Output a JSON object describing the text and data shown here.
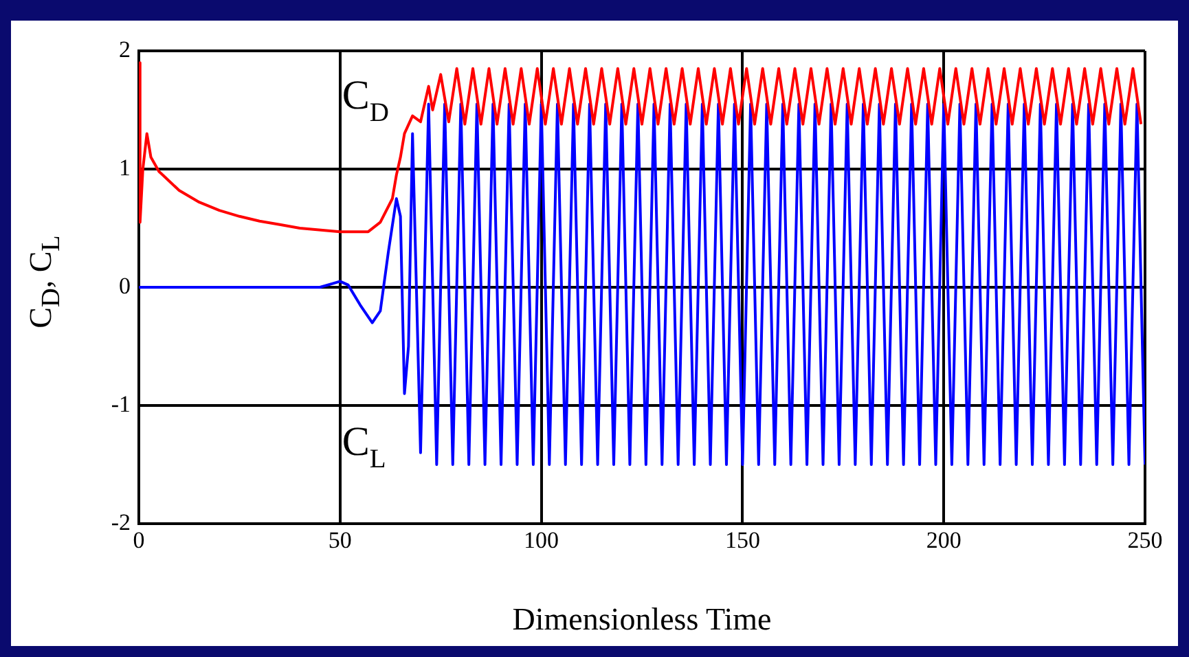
{
  "chart_data": {
    "type": "line",
    "xlabel": "Dimensionless Time",
    "ylabel": "C$_{D}$, C$_{L}$",
    "xlim": [
      0,
      250
    ],
    "xticks": [
      0,
      50,
      100,
      150,
      200,
      250
    ],
    "ylim": [
      -2,
      2
    ],
    "yticks": [
      -2,
      -1,
      0,
      1,
      2
    ],
    "grid": true,
    "legend": false,
    "marker": "none",
    "line_style": "solid",
    "series": [
      {
        "name": "C$_{D}$",
        "color": "#ff0000",
        "x": [
          0,
          0.3,
          1,
          2,
          3,
          5,
          10,
          15,
          20,
          25,
          30,
          35,
          40,
          50,
          57,
          60,
          63,
          64,
          65,
          66,
          68,
          70,
          72,
          73,
          75,
          77,
          79,
          81,
          83,
          85,
          87,
          89,
          91,
          93,
          95,
          97,
          99,
          101,
          103,
          105,
          107,
          109,
          111,
          113,
          115,
          117,
          119,
          121,
          123,
          125,
          127,
          129,
          131,
          133,
          135,
          137,
          139,
          141,
          143,
          145,
          147,
          149,
          151,
          153,
          155,
          157,
          159,
          161,
          163,
          165,
          167,
          169,
          171,
          173,
          175,
          177,
          179,
          181,
          183,
          185,
          187,
          189,
          191,
          193,
          195,
          197,
          199,
          201,
          203,
          205,
          207,
          209,
          211,
          213,
          215,
          217,
          219,
          221,
          223,
          225,
          227,
          229,
          231,
          233,
          235,
          237,
          239,
          241,
          243,
          245,
          247,
          249
        ],
        "values": [
          1.9,
          0.55,
          1.0,
          1.3,
          1.1,
          0.98,
          0.82,
          0.72,
          0.65,
          0.6,
          0.56,
          0.53,
          0.5,
          0.47,
          0.47,
          0.55,
          0.75,
          0.95,
          1.1,
          1.3,
          1.45,
          1.4,
          1.7,
          1.5,
          1.8,
          1.4,
          1.85,
          1.38,
          1.85,
          1.38,
          1.85,
          1.38,
          1.85,
          1.38,
          1.85,
          1.38,
          1.85,
          1.38,
          1.85,
          1.38,
          1.85,
          1.38,
          1.85,
          1.38,
          1.85,
          1.38,
          1.85,
          1.38,
          1.85,
          1.38,
          1.85,
          1.38,
          1.85,
          1.38,
          1.85,
          1.38,
          1.85,
          1.38,
          1.85,
          1.38,
          1.85,
          1.38,
          1.85,
          1.38,
          1.85,
          1.38,
          1.85,
          1.38,
          1.85,
          1.38,
          1.85,
          1.38,
          1.85,
          1.38,
          1.85,
          1.38,
          1.85,
          1.38,
          1.85,
          1.38,
          1.85,
          1.38,
          1.85,
          1.38,
          1.85,
          1.38,
          1.85,
          1.38,
          1.85,
          1.38,
          1.85,
          1.38,
          1.85,
          1.38,
          1.85,
          1.38,
          1.85,
          1.38,
          1.85,
          1.38,
          1.85,
          1.38,
          1.85,
          1.38,
          1.85,
          1.38,
          1.85,
          1.38,
          1.85,
          1.38,
          1.85,
          1.38
        ]
      },
      {
        "name": "C$_{L}$",
        "color": "#0000ff",
        "x": [
          0,
          45,
          48,
          50,
          52,
          55,
          58,
          60,
          62,
          64,
          65,
          66,
          67,
          68,
          70,
          72,
          74,
          76,
          78,
          80,
          82,
          84,
          86,
          88,
          90,
          92,
          94,
          96,
          98,
          100,
          102,
          104,
          106,
          108,
          110,
          112,
          114,
          116,
          118,
          120,
          122,
          124,
          126,
          128,
          130,
          132,
          134,
          136,
          138,
          140,
          142,
          144,
          146,
          148,
          150,
          152,
          154,
          156,
          158,
          160,
          162,
          164,
          166,
          168,
          170,
          172,
          174,
          176,
          178,
          180,
          182,
          184,
          186,
          188,
          190,
          192,
          194,
          196,
          198,
          200,
          202,
          204,
          206,
          208,
          210,
          212,
          214,
          216,
          218,
          220,
          222,
          224,
          226,
          228,
          230,
          232,
          234,
          236,
          238,
          240,
          242,
          244,
          246,
          248,
          250
        ],
        "values": [
          0,
          0,
          0.03,
          0.05,
          0.02,
          -0.15,
          -0.3,
          -0.2,
          0.3,
          0.75,
          0.6,
          -0.9,
          -0.5,
          1.3,
          -1.4,
          1.55,
          -1.5,
          1.55,
          -1.5,
          1.55,
          -1.5,
          1.55,
          -1.5,
          1.55,
          -1.5,
          1.55,
          -1.5,
          1.55,
          -1.5,
          1.55,
          -1.5,
          1.55,
          -1.5,
          1.55,
          -1.5,
          1.55,
          -1.5,
          1.55,
          -1.5,
          1.55,
          -1.5,
          1.55,
          -1.5,
          1.55,
          -1.5,
          1.55,
          -1.5,
          1.55,
          -1.5,
          1.55,
          -1.5,
          1.55,
          -1.5,
          1.55,
          -1.5,
          1.55,
          -1.5,
          1.55,
          -1.5,
          1.55,
          -1.5,
          1.55,
          -1.5,
          1.55,
          -1.5,
          1.55,
          -1.5,
          1.55,
          -1.5,
          1.55,
          -1.5,
          1.55,
          -1.5,
          1.55,
          -1.5,
          1.55,
          -1.5,
          1.55,
          -1.5,
          1.55,
          -1.5,
          1.55,
          -1.5,
          1.55,
          -1.5,
          1.55,
          -1.5,
          1.55,
          -1.5,
          1.55,
          -1.5,
          1.55,
          -1.5,
          1.55,
          -1.5,
          1.55,
          -1.5,
          1.55,
          -1.5,
          1.55,
          -1.5,
          1.55,
          -1.5,
          1.55,
          -1.5
        ]
      }
    ]
  }
}
